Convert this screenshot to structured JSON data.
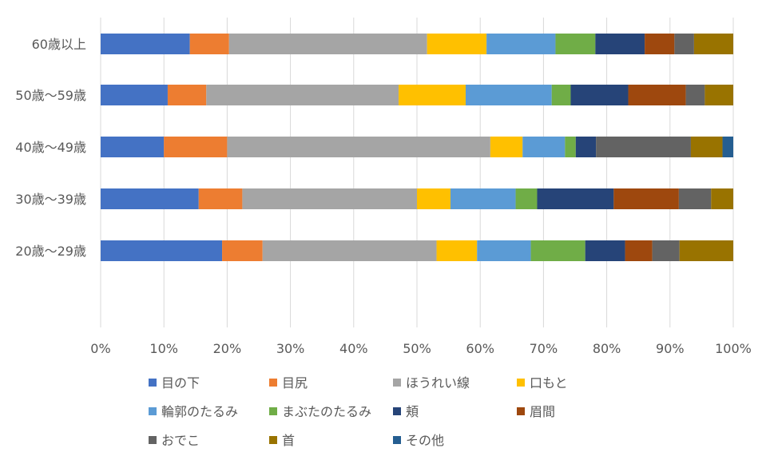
{
  "chart_data": {
    "type": "bar",
    "orientation": "horizontal",
    "stacked": "percent",
    "title": "",
    "xlabel": "",
    "ylabel": "",
    "xlim": [
      0,
      100
    ],
    "x_ticks": [
      "0%",
      "10%",
      "20%",
      "30%",
      "40%",
      "50%",
      "60%",
      "70%",
      "80%",
      "90%",
      "100%"
    ],
    "grid": "vertical",
    "legend_position": "bottom",
    "categories": [
      "60歳以上",
      "50歳〜59歳",
      "40歳〜49歳",
      "30歳〜39歳",
      "20歳〜29歳"
    ],
    "series": [
      {
        "name": "目の下",
        "color": "#4472C4",
        "values": [
          14.1,
          10.6,
          10.0,
          15.5,
          19.2
        ]
      },
      {
        "name": "目尻",
        "color": "#ED7D31",
        "values": [
          6.2,
          6.1,
          10.0,
          6.9,
          6.4
        ]
      },
      {
        "name": "ほうれい線",
        "color": "#A5A5A5",
        "values": [
          31.3,
          30.4,
          41.6,
          27.6,
          27.5
        ]
      },
      {
        "name": "口もと",
        "color": "#FFC000",
        "values": [
          9.4,
          10.6,
          5.1,
          5.3,
          6.4
        ]
      },
      {
        "name": "輪郭のたるみ",
        "color": "#5B9BD5",
        "values": [
          10.9,
          13.6,
          6.7,
          10.3,
          8.5
        ]
      },
      {
        "name": "まぶたのたるみ",
        "color": "#70AD47",
        "values": [
          6.3,
          3.0,
          1.7,
          3.4,
          8.6
        ]
      },
      {
        "name": "頬",
        "color": "#264478",
        "values": [
          7.8,
          9.1,
          3.2,
          12.1,
          6.3
        ]
      },
      {
        "name": "眉間",
        "color": "#9E480E",
        "values": [
          4.7,
          9.1,
          0,
          10.3,
          4.3
        ]
      },
      {
        "name": "おでこ",
        "color": "#636363",
        "values": [
          3.1,
          3.0,
          15.0,
          5.1,
          4.3
        ]
      },
      {
        "name": "首",
        "color": "#997300",
        "values": [
          6.2,
          4.5,
          5.0,
          3.5,
          8.5
        ]
      },
      {
        "name": "その他",
        "color": "#255E91",
        "values": [
          0,
          0,
          1.7,
          0,
          0
        ]
      }
    ]
  }
}
